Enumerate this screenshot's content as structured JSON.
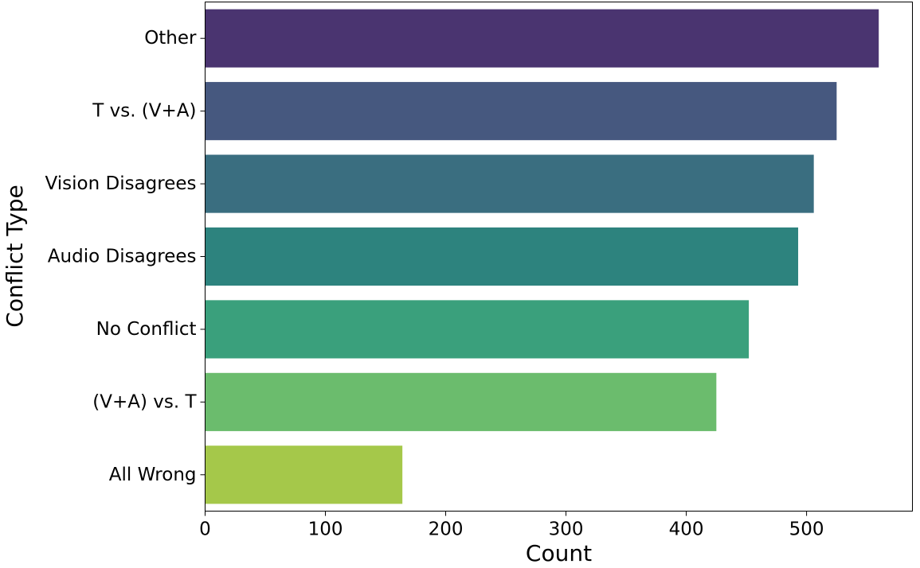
{
  "chart_data": {
    "type": "bar",
    "orientation": "horizontal",
    "categories": [
      "Other",
      "T vs. (V+A)",
      "Vision Disagrees",
      "Audio Disagrees",
      "No Conflict",
      "(V+A) vs. T",
      "All Wrong"
    ],
    "values": [
      560,
      525,
      506,
      493,
      452,
      425,
      164
    ],
    "colors": [
      "#4a3470",
      "#46587f",
      "#3a6e80",
      "#2d837e",
      "#3aa07c",
      "#6bbc6d",
      "#a5c84a"
    ],
    "title": "",
    "xlabel": "Count",
    "ylabel": "Conflict Type",
    "xlim": [
      0,
      588
    ],
    "xticks": [
      0,
      100,
      200,
      300,
      400,
      500
    ],
    "grid": false,
    "legend": "none"
  }
}
